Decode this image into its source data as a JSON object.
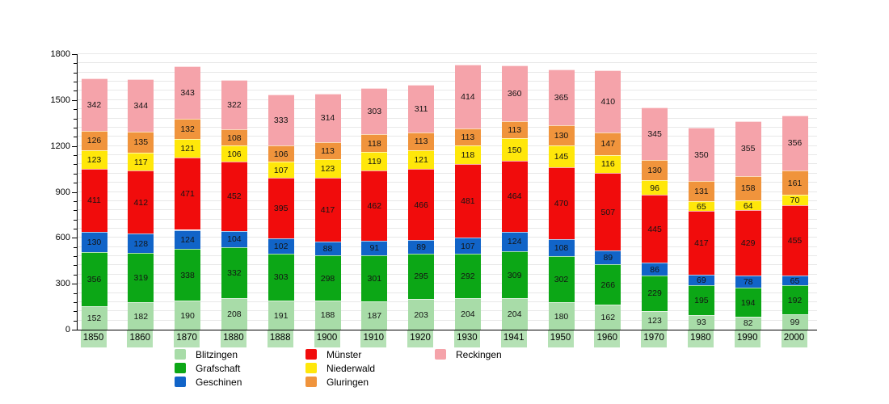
{
  "chart_data": {
    "type": "bar",
    "stacked": true,
    "title": "",
    "xlabel": "",
    "ylabel": "",
    "categories": [
      "1850",
      "1860",
      "1870",
      "1880",
      "1888",
      "1900",
      "1910",
      "1920",
      "1930",
      "1941",
      "1950",
      "1960",
      "1970",
      "1980",
      "1990",
      "2000"
    ],
    "series": [
      {
        "name": "Blitzingen",
        "color": "#a8dca8",
        "values": [
          152,
          182,
          190,
          208,
          191,
          188,
          187,
          203,
          204,
          204,
          180,
          162,
          123,
          93,
          82,
          99
        ]
      },
      {
        "name": "Grafschaft",
        "color": "#0ca716",
        "values": [
          356,
          319,
          338,
          332,
          303,
          298,
          301,
          295,
          292,
          309,
          302,
          266,
          229,
          195,
          194,
          192
        ]
      },
      {
        "name": "Geschinen",
        "color": "#1164c8",
        "values": [
          130,
          128,
          124,
          104,
          102,
          88,
          91,
          89,
          107,
          124,
          108,
          89,
          86,
          69,
          78,
          65
        ]
      },
      {
        "name": "Münster",
        "color": "#f10c0c",
        "values": [
          411,
          412,
          471,
          452,
          395,
          417,
          462,
          466,
          481,
          464,
          470,
          507,
          445,
          417,
          429,
          455
        ]
      },
      {
        "name": "Niederwald",
        "color": "#ffe70a",
        "values": [
          123,
          117,
          121,
          106,
          107,
          123,
          119,
          121,
          118,
          150,
          145,
          116,
          96,
          65,
          64,
          70
        ]
      },
      {
        "name": "Gluringen",
        "color": "#f0943c",
        "values": [
          126,
          135,
          132,
          108,
          106,
          113,
          118,
          113,
          113,
          113,
          130,
          147,
          130,
          131,
          158,
          161
        ]
      },
      {
        "name": "Reckingen",
        "color": "#f5a3aa",
        "values": [
          342,
          344,
          343,
          322,
          333,
          314,
          303,
          311,
          414,
          360,
          365,
          410,
          345,
          350,
          355,
          356
        ]
      }
    ],
    "ylim": [
      0,
      1800
    ],
    "y_major_ticks": [
      0,
      300,
      600,
      900,
      1200,
      1500,
      1800
    ],
    "y_minor_step": 60,
    "grid": true,
    "grid_color": "#e8e8e8",
    "legend_position": "bottom",
    "legend_columns": [
      [
        0,
        1,
        2
      ],
      [
        3,
        4,
        5
      ],
      [
        6
      ]
    ]
  }
}
